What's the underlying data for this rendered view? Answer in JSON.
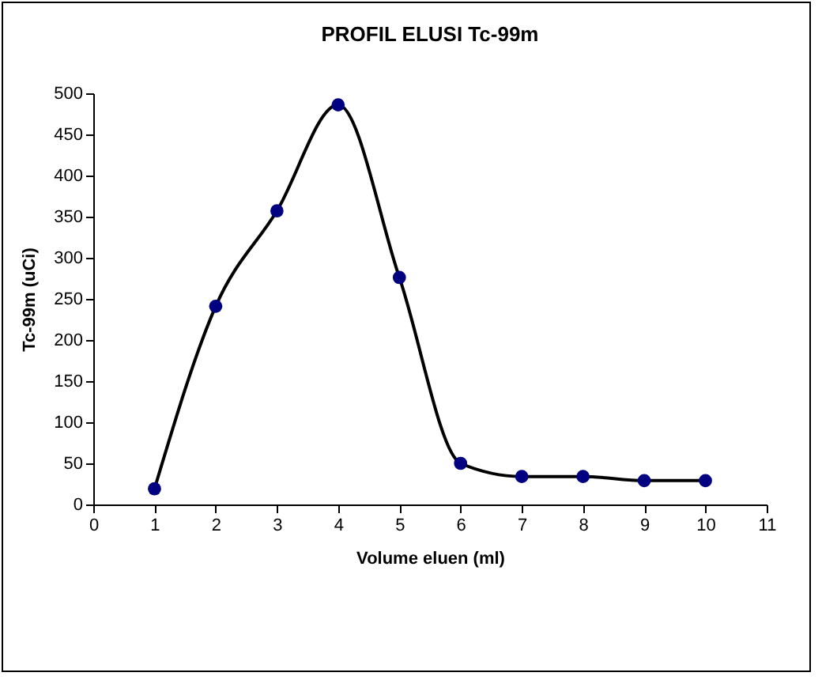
{
  "chart_data": {
    "type": "line",
    "title": "PROFIL ELUSI Tc-99m",
    "xlabel": "Volume eluen (ml)",
    "ylabel": "Tc-99m (uCi)",
    "x": [
      1,
      2,
      3,
      4,
      5,
      6,
      7,
      8,
      9,
      10
    ],
    "series": [
      {
        "color": "#000080",
        "values": [
          19,
          241,
          357,
          486,
          276,
          50,
          34,
          34,
          29,
          29
        ]
      }
    ],
    "xlim": [
      0,
      11
    ],
    "xticks": [
      0,
      1,
      2,
      3,
      4,
      5,
      6,
      7,
      8,
      9,
      10,
      11
    ],
    "ylim": [
      0,
      500
    ],
    "yticks": [
      0,
      50,
      100,
      150,
      200,
      250,
      300,
      350,
      400,
      450,
      500
    ],
    "marker": "circle",
    "line_style": "solid",
    "grid": false
  }
}
